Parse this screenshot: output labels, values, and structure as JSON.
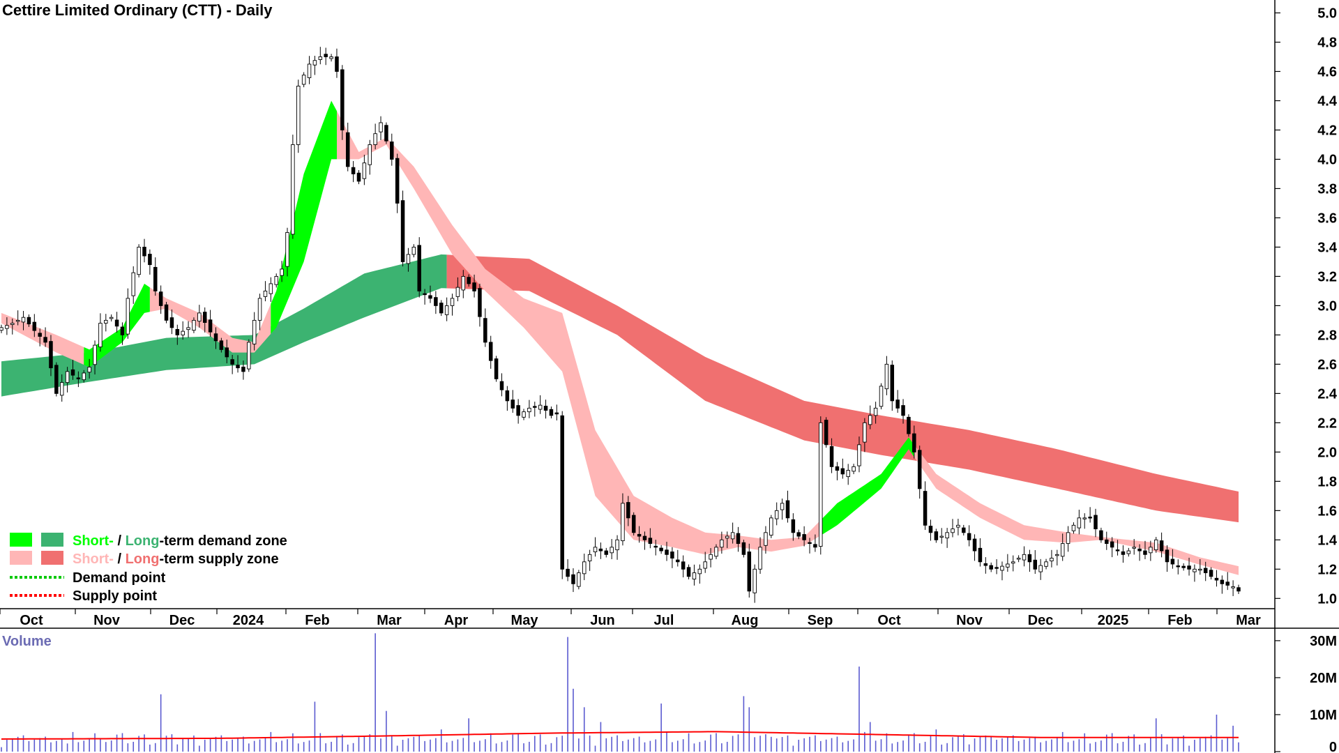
{
  "chart_data": {
    "type": "candlestick",
    "title": "Cettire Limited Ordinary (CTT) - Daily",
    "price_axis": {
      "ticks": [
        "1.0",
        "1.2",
        "1.4",
        "1.6",
        "1.8",
        "2.0",
        "2.2",
        "2.4",
        "2.6",
        "2.8",
        "3.0",
        "3.2",
        "3.4",
        "3.6",
        "3.8",
        "4.0",
        "4.2",
        "4.4",
        "4.6",
        "4.8",
        "5.0"
      ],
      "range": [
        0.93,
        5.05
      ]
    },
    "x_axis_labels": [
      "Oct",
      "Nov",
      "Dec",
      "2024",
      "Feb",
      "Mar",
      "Apr",
      "May",
      "Jun",
      "Jul",
      "Aug",
      "Sep",
      "Oct",
      "Nov",
      "Dec",
      "2025",
      "Feb",
      "Mar"
    ],
    "price_close": [
      [
        0,
        2.85
      ],
      [
        2,
        2.88
      ],
      [
        4,
        2.92
      ],
      [
        6,
        2.83
      ],
      [
        8,
        2.75
      ],
      [
        10,
        2.4
      ],
      [
        12,
        2.55
      ],
      [
        14,
        2.5
      ],
      [
        16,
        2.58
      ],
      [
        18,
        2.88
      ],
      [
        20,
        2.92
      ],
      [
        22,
        2.8
      ],
      [
        23,
        3.05
      ],
      [
        25,
        3.4
      ],
      [
        27,
        3.28
      ],
      [
        28,
        3.1
      ],
      [
        30,
        2.9
      ],
      [
        32,
        2.8
      ],
      [
        34,
        2.85
      ],
      [
        36,
        2.95
      ],
      [
        38,
        2.82
      ],
      [
        40,
        2.7
      ],
      [
        42,
        2.6
      ],
      [
        44,
        2.55
      ],
      [
        45,
        2.75
      ],
      [
        47,
        3.05
      ],
      [
        49,
        3.15
      ],
      [
        51,
        3.25
      ],
      [
        52,
        3.5
      ],
      [
        53,
        4.1
      ],
      [
        54,
        4.5
      ],
      [
        56,
        4.65
      ],
      [
        58,
        4.7
      ],
      [
        60,
        4.7
      ],
      [
        61,
        4.6
      ],
      [
        62,
        4.2
      ],
      [
        63,
        3.95
      ],
      [
        65,
        3.85
      ],
      [
        67,
        4.1
      ],
      [
        69,
        4.25
      ],
      [
        71,
        4.0
      ],
      [
        72,
        3.7
      ],
      [
        73,
        3.3
      ],
      [
        75,
        3.4
      ],
      [
        76,
        3.1
      ],
      [
        78,
        3.05
      ],
      [
        80,
        2.95
      ],
      [
        82,
        3.05
      ],
      [
        84,
        3.2
      ],
      [
        86,
        3.1
      ],
      [
        88,
        2.75
      ],
      [
        90,
        2.5
      ],
      [
        92,
        2.35
      ],
      [
        94,
        2.25
      ],
      [
        96,
        2.3
      ],
      [
        98,
        2.32
      ],
      [
        100,
        2.25
      ],
      [
        101,
        2.26
      ],
      [
        102,
        1.2
      ],
      [
        104,
        1.1
      ],
      [
        106,
        1.25
      ],
      [
        108,
        1.35
      ],
      [
        110,
        1.3
      ],
      [
        112,
        1.4
      ],
      [
        113,
        1.65
      ],
      [
        115,
        1.45
      ],
      [
        117,
        1.4
      ],
      [
        119,
        1.35
      ],
      [
        121,
        1.3
      ],
      [
        123,
        1.25
      ],
      [
        125,
        1.15
      ],
      [
        127,
        1.2
      ],
      [
        129,
        1.3
      ],
      [
        131,
        1.4
      ],
      [
        133,
        1.45
      ],
      [
        135,
        1.3
      ],
      [
        136,
        1.05
      ],
      [
        138,
        1.35
      ],
      [
        140,
        1.55
      ],
      [
        142,
        1.65
      ],
      [
        144,
        1.45
      ],
      [
        146,
        1.4
      ],
      [
        148,
        1.35
      ],
      [
        149,
        2.2
      ],
      [
        151,
        1.9
      ],
      [
        153,
        1.85
      ],
      [
        155,
        1.9
      ],
      [
        157,
        2.2
      ],
      [
        159,
        2.3
      ],
      [
        161,
        2.6
      ],
      [
        162,
        2.35
      ],
      [
        164,
        2.25
      ],
      [
        166,
        2.0
      ],
      [
        167,
        1.75
      ],
      [
        168,
        1.5
      ],
      [
        170,
        1.4
      ],
      [
        172,
        1.45
      ],
      [
        174,
        1.5
      ],
      [
        176,
        1.4
      ],
      [
        178,
        1.25
      ],
      [
        180,
        1.2
      ],
      [
        182,
        1.22
      ],
      [
        184,
        1.25
      ],
      [
        186,
        1.3
      ],
      [
        188,
        1.2
      ],
      [
        190,
        1.25
      ],
      [
        192,
        1.3
      ],
      [
        194,
        1.45
      ],
      [
        196,
        1.55
      ],
      [
        198,
        1.55
      ],
      [
        200,
        1.4
      ],
      [
        202,
        1.35
      ],
      [
        204,
        1.3
      ],
      [
        206,
        1.35
      ],
      [
        208,
        1.3
      ],
      [
        210,
        1.4
      ],
      [
        212,
        1.25
      ],
      [
        214,
        1.22
      ],
      [
        216,
        1.2
      ],
      [
        218,
        1.2
      ],
      [
        220,
        1.15
      ],
      [
        222,
        1.1
      ],
      [
        224,
        1.08
      ],
      [
        225,
        1.05
      ]
    ],
    "short_term_zone": {
      "upper": [
        [
          0,
          2.95
        ],
        [
          10,
          2.8
        ],
        [
          16,
          2.7
        ],
        [
          22,
          2.85
        ],
        [
          26,
          3.15
        ],
        [
          30,
          3.05
        ],
        [
          36,
          2.95
        ],
        [
          42,
          2.78
        ],
        [
          46,
          2.75
        ],
        [
          50,
          3.1
        ],
        [
          55,
          3.9
        ],
        [
          60,
          4.4
        ],
        [
          65,
          4.05
        ],
        [
          70,
          4.15
        ],
        [
          75,
          3.95
        ],
        [
          82,
          3.55
        ],
        [
          88,
          3.25
        ],
        [
          95,
          3.05
        ],
        [
          102,
          2.95
        ],
        [
          108,
          2.15
        ],
        [
          115,
          1.7
        ],
        [
          122,
          1.55
        ],
        [
          128,
          1.45
        ],
        [
          134,
          1.43
        ],
        [
          140,
          1.4
        ],
        [
          146,
          1.42
        ],
        [
          152,
          1.65
        ],
        [
          160,
          1.85
        ],
        [
          165,
          2.1
        ],
        [
          170,
          1.85
        ],
        [
          178,
          1.65
        ],
        [
          186,
          1.5
        ],
        [
          194,
          1.45
        ],
        [
          200,
          1.42
        ],
        [
          210,
          1.38
        ],
        [
          218,
          1.28
        ],
        [
          225,
          1.22
        ]
      ],
      "lower": [
        [
          0,
          2.88
        ],
        [
          10,
          2.68
        ],
        [
          16,
          2.58
        ],
        [
          22,
          2.75
        ],
        [
          26,
          2.95
        ],
        [
          30,
          2.98
        ],
        [
          36,
          2.85
        ],
        [
          42,
          2.68
        ],
        [
          46,
          2.68
        ],
        [
          50,
          2.85
        ],
        [
          55,
          3.3
        ],
        [
          60,
          4.0
        ],
        [
          65,
          4.0
        ],
        [
          70,
          4.1
        ],
        [
          75,
          3.8
        ],
        [
          82,
          3.35
        ],
        [
          88,
          3.1
        ],
        [
          95,
          2.85
        ],
        [
          102,
          2.55
        ],
        [
          108,
          1.7
        ],
        [
          115,
          1.4
        ],
        [
          122,
          1.35
        ],
        [
          128,
          1.3
        ],
        [
          134,
          1.35
        ],
        [
          140,
          1.32
        ],
        [
          146,
          1.36
        ],
        [
          152,
          1.5
        ],
        [
          160,
          1.75
        ],
        [
          165,
          2.02
        ],
        [
          170,
          1.75
        ],
        [
          178,
          1.55
        ],
        [
          186,
          1.4
        ],
        [
          194,
          1.38
        ],
        [
          200,
          1.4
        ],
        [
          210,
          1.32
        ],
        [
          218,
          1.23
        ],
        [
          225,
          1.16
        ]
      ],
      "state": [
        [
          0,
          "supply"
        ],
        [
          16,
          "demand"
        ],
        [
          28,
          "supply"
        ],
        [
          50,
          "demand"
        ],
        [
          62,
          "supply"
        ],
        [
          150,
          "demand"
        ],
        [
          167,
          "supply"
        ]
      ]
    },
    "long_term_zone": {
      "upper": [
        [
          0,
          2.62
        ],
        [
          16,
          2.68
        ],
        [
          30,
          2.78
        ],
        [
          46,
          2.8
        ],
        [
          55,
          2.98
        ],
        [
          66,
          3.22
        ],
        [
          80,
          3.35
        ],
        [
          96,
          3.32
        ],
        [
          112,
          3.0
        ],
        [
          128,
          2.65
        ],
        [
          146,
          2.35
        ],
        [
          160,
          2.25
        ],
        [
          176,
          2.15
        ],
        [
          192,
          2.02
        ],
        [
          210,
          1.85
        ],
        [
          225,
          1.73
        ]
      ],
      "lower": [
        [
          0,
          2.38
        ],
        [
          16,
          2.48
        ],
        [
          30,
          2.56
        ],
        [
          46,
          2.6
        ],
        [
          55,
          2.75
        ],
        [
          66,
          2.92
        ],
        [
          80,
          3.12
        ],
        [
          96,
          3.1
        ],
        [
          112,
          2.8
        ],
        [
          128,
          2.35
        ],
        [
          146,
          2.08
        ],
        [
          160,
          1.98
        ],
        [
          176,
          1.88
        ],
        [
          192,
          1.75
        ],
        [
          210,
          1.6
        ],
        [
          225,
          1.52
        ]
      ],
      "state": [
        [
          0,
          "demand"
        ],
        [
          82,
          "supply"
        ]
      ]
    },
    "volume_axis": {
      "ticks": [
        "0",
        "10M",
        "20M",
        "30M"
      ],
      "range": [
        0,
        33
      ]
    },
    "volume": [
      [
        0,
        1.2
      ],
      [
        12,
        2.2
      ],
      [
        18,
        3.5
      ],
      [
        29,
        15.5
      ],
      [
        34,
        3.5
      ],
      [
        45,
        2.2
      ],
      [
        57,
        13.5
      ],
      [
        68,
        32
      ],
      [
        70,
        11
      ],
      [
        80,
        6
      ],
      [
        85,
        9
      ],
      [
        103,
        31
      ],
      [
        104,
        17
      ],
      [
        106,
        12
      ],
      [
        109,
        8
      ],
      [
        120,
        13
      ],
      [
        135,
        15
      ],
      [
        136,
        12
      ],
      [
        140,
        4
      ],
      [
        156,
        23
      ],
      [
        158,
        8
      ],
      [
        170,
        6
      ],
      [
        180,
        4
      ],
      [
        210,
        9
      ],
      [
        221,
        10
      ],
      [
        224,
        7
      ]
    ],
    "volume_avg": [
      [
        0,
        3.4
      ],
      [
        40,
        3.6
      ],
      [
        68,
        4.2
      ],
      [
        100,
        5.0
      ],
      [
        130,
        5.4
      ],
      [
        160,
        4.6
      ],
      [
        190,
        3.8
      ],
      [
        225,
        3.8
      ]
    ],
    "legend": [
      {
        "short": "Short-",
        "long": "Long",
        "suffix": "-term demand zone",
        "colors": [
          "#00ff00",
          "#3cb371"
        ]
      },
      {
        "short": "Short-",
        "long": "Long",
        "suffix": "-term supply zone",
        "colors": [
          "#ffb6b6",
          "#f07070"
        ]
      },
      {
        "label": "Demand point",
        "color": "#00c800"
      },
      {
        "label": "Supply point",
        "color": "#ff0000"
      }
    ],
    "volume_title": "Volume",
    "colors": {
      "demand_short": "#00ff00",
      "demand_long": "#3cb371",
      "supply_short": "#ffb6b6",
      "supply_long": "#f07070",
      "cross_short": "#ff6a1f",
      "volume_bar": "#5a5ad0",
      "volume_avg": "#ff0000"
    }
  }
}
